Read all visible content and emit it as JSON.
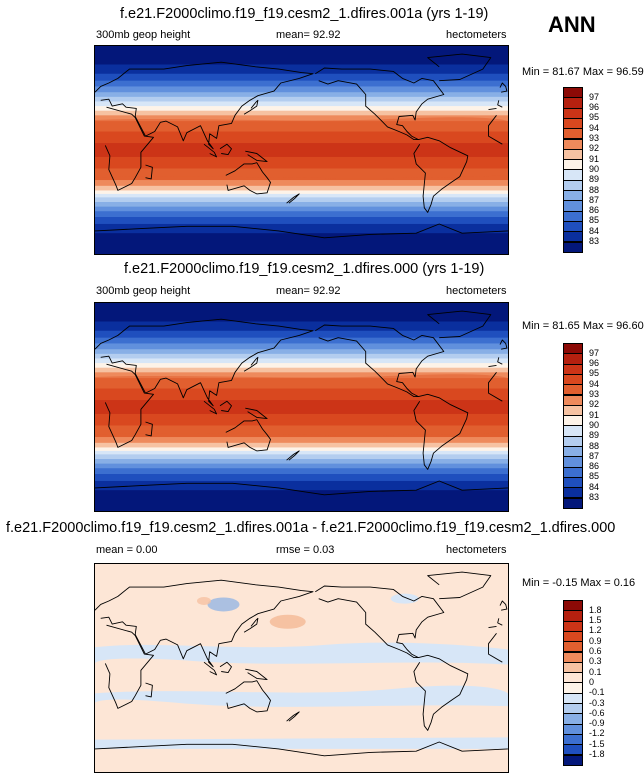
{
  "season": "ANN",
  "panels": [
    {
      "title": "f.e21.F2000climo.f19_f19.cesm2_1.dfires.001a (yrs 1-19)",
      "left_label": "300mb geop height",
      "center_label": "mean=  92.92",
      "right_label": "hectometers",
      "minmax": "Min = 81.67 Max = 96.59",
      "colorbar_ticks": [
        "97",
        "96",
        "95",
        "94",
        "93",
        "92",
        "91",
        "90",
        "89",
        "88",
        "87",
        "86",
        "85",
        "84",
        "83"
      ],
      "colorbar_colors": [
        "#8c0a06",
        "#b5200f",
        "#cc3417",
        "#d9481f",
        "#e15f2f",
        "#ee8a5c",
        "#f6c2a2",
        "#fdf3e8",
        "#d7e6f7",
        "#b3cdef",
        "#88afe6",
        "#6190dd",
        "#3c6fd0",
        "#1f4fbe",
        "#0a2f9e",
        "#03177a"
      ]
    },
    {
      "title": "f.e21.F2000climo.f19_f19.cesm2_1.dfires.000 (yrs 1-19)",
      "left_label": "300mb geop height",
      "center_label": "mean=  92.92",
      "right_label": "hectometers",
      "minmax": "Min = 81.65 Max = 96.60",
      "colorbar_ticks": [
        "97",
        "96",
        "95",
        "94",
        "93",
        "92",
        "91",
        "90",
        "89",
        "88",
        "87",
        "86",
        "85",
        "84",
        "83"
      ],
      "colorbar_colors": [
        "#8c0a06",
        "#b5200f",
        "#cc3417",
        "#d9481f",
        "#e15f2f",
        "#ee8a5c",
        "#f6c2a2",
        "#fdf3e8",
        "#d7e6f7",
        "#b3cdef",
        "#88afe6",
        "#6190dd",
        "#3c6fd0",
        "#1f4fbe",
        "#0a2f9e",
        "#03177a"
      ]
    },
    {
      "title": "f.e21.F2000climo.f19_f19.cesm2_1.dfires.001a - f.e21.F2000climo.f19_f19.cesm2_1.dfires.000",
      "left_label": "mean =  0.00",
      "center_label": "rmse =  0.03",
      "right_label": "hectometers",
      "minmax": "Min = -0.15 Max =  0.16",
      "colorbar_ticks": [
        "1.8",
        "1.5",
        "1.2",
        "0.9",
        "0.6",
        "0.3",
        "0.1",
        "0",
        "-0.1",
        "-0.3",
        "-0.6",
        "-0.9",
        "-1.2",
        "-1.5",
        "-1.8"
      ],
      "colorbar_colors": [
        "#8c0a06",
        "#b5200f",
        "#cc3417",
        "#d9481f",
        "#e15f2f",
        "#ee8a5c",
        "#f6c2a2",
        "#fde6d6",
        "#fdf3e8",
        "#d7e6f7",
        "#b3cdef",
        "#88afe6",
        "#6190dd",
        "#3c6fd0",
        "#1f4fbe",
        "#03177a"
      ]
    }
  ]
}
